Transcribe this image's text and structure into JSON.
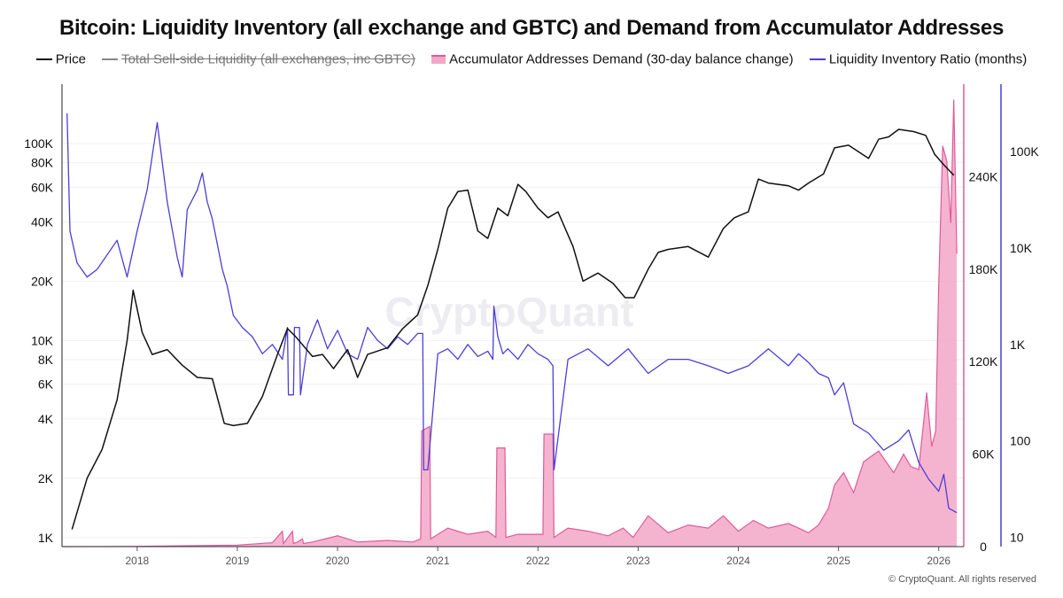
{
  "title": "Bitcoin: Liquidity Inventory (all exchange and GBTC) and Demand from Accumulator Addresses",
  "watermark": "CryptoQuant",
  "copyright": "© CryptoQuant. All rights reserved",
  "legend": [
    {
      "label": "Price",
      "color": "#111111",
      "kind": "line",
      "disabled": false
    },
    {
      "label": "Total Sell-side Liquidity (all exchanges, inc GBTC)",
      "color": "#888888",
      "kind": "line",
      "disabled": true
    },
    {
      "label": "Accumulator Addresses Demand (30-day balance change)",
      "color": "#e879a8",
      "kind": "box",
      "disabled": false
    },
    {
      "label": "Liquidity Inventory Ratio (months)",
      "color": "#4b3fd6",
      "kind": "line",
      "disabled": false
    }
  ],
  "chart_data": {
    "type": "line",
    "x_axis": {
      "type": "time",
      "range": [
        2017.25,
        2026.25
      ],
      "ticks": [
        "2018",
        "2019",
        "2020",
        "2021",
        "2022",
        "2023",
        "2024",
        "2025",
        "2026"
      ],
      "tick_values": [
        2018,
        2019,
        2020,
        2021,
        2022,
        2023,
        2024,
        2025,
        2026
      ]
    },
    "y_left": {
      "label": "Price",
      "scale": "log",
      "range": [
        900,
        200000
      ],
      "ticks": [
        "1K",
        "2K",
        "4K",
        "6K",
        "8K",
        "10K",
        "20K",
        "40K",
        "60K",
        "80K",
        "100K"
      ],
      "tick_values": [
        1000,
        2000,
        4000,
        6000,
        8000,
        10000,
        20000,
        40000,
        60000,
        80000,
        100000
      ]
    },
    "y_right_inner": {
      "label": "Accumulator Addresses Demand",
      "scale": "linear",
      "range": [
        0,
        300000
      ],
      "ticks": [
        "0",
        "60K",
        "120K",
        "180K",
        "240K"
      ],
      "tick_values": [
        0,
        60000,
        120000,
        180000,
        240000
      ]
    },
    "y_right_outer": {
      "label": "Liquidity Inventory Ratio (months)",
      "scale": "log",
      "range": [
        8,
        500000
      ],
      "ticks": [
        "10",
        "100",
        "1K",
        "10K",
        "100K"
      ],
      "tick_values": [
        10,
        100,
        1000,
        10000,
        100000
      ]
    },
    "series": [
      {
        "name": "Price",
        "color": "#111111",
        "axis": "y_left",
        "x": [
          2017.35,
          2017.5,
          2017.65,
          2017.8,
          2017.9,
          2017.96,
          2018.05,
          2018.15,
          2018.3,
          2018.45,
          2018.6,
          2018.75,
          2018.87,
          2018.96,
          2019.1,
          2019.25,
          2019.4,
          2019.5,
          2019.58,
          2019.75,
          2019.85,
          2019.96,
          2020.1,
          2020.2,
          2020.3,
          2020.5,
          2020.65,
          2020.8,
          2020.9,
          2021.0,
          2021.1,
          2021.2,
          2021.3,
          2021.4,
          2021.5,
          2021.6,
          2021.7,
          2021.8,
          2021.88,
          2022.0,
          2022.1,
          2022.2,
          2022.35,
          2022.45,
          2022.6,
          2022.75,
          2022.87,
          2022.96,
          2023.1,
          2023.2,
          2023.3,
          2023.5,
          2023.7,
          2023.85,
          2023.96,
          2024.1,
          2024.2,
          2024.3,
          2024.5,
          2024.6,
          2024.7,
          2024.85,
          2024.96,
          2025.1,
          2025.3,
          2025.4,
          2025.5,
          2025.6,
          2025.75,
          2025.87,
          2025.96,
          2026.05,
          2026.15
        ],
        "values": [
          1100,
          2000,
          2800,
          5000,
          10000,
          18000,
          11000,
          8500,
          9000,
          7500,
          6500,
          6400,
          3800,
          3700,
          3800,
          5200,
          8500,
          11500,
          10500,
          8300,
          8500,
          7200,
          9000,
          6500,
          8500,
          9200,
          11500,
          13500,
          19000,
          29000,
          47000,
          57000,
          58000,
          36000,
          33000,
          47000,
          43000,
          62000,
          57000,
          47000,
          42000,
          45000,
          30000,
          20000,
          22000,
          19500,
          16500,
          16500,
          23000,
          28000,
          29000,
          30000,
          26500,
          37000,
          42000,
          45000,
          66000,
          63000,
          61000,
          58000,
          63000,
          70000,
          95000,
          98000,
          84000,
          105000,
          108000,
          118000,
          115000,
          110000,
          88000,
          78000,
          69000
        ]
      },
      {
        "name": "Accumulator Addresses Demand (30-day balance change)",
        "color": "#e879a8",
        "axis": "y_right_inner",
        "x": [
          2017.25,
          2018.0,
          2019.0,
          2019.35,
          2019.45,
          2019.46,
          2019.55,
          2019.56,
          2019.6,
          2019.65,
          2019.66,
          2019.75,
          2020.0,
          2020.2,
          2020.5,
          2020.75,
          2020.83,
          2020.84,
          2020.92,
          2020.93,
          2021.1,
          2021.3,
          2021.5,
          2021.58,
          2021.59,
          2021.67,
          2021.68,
          2021.8,
          2022.05,
          2022.06,
          2022.15,
          2022.16,
          2022.3,
          2022.5,
          2022.7,
          2022.85,
          2022.95,
          2023.1,
          2023.3,
          2023.5,
          2023.7,
          2023.85,
          2024.0,
          2024.15,
          2024.3,
          2024.5,
          2024.7,
          2024.8,
          2024.9,
          2024.96,
          2025.05,
          2025.15,
          2025.25,
          2025.4,
          2025.55,
          2025.65,
          2025.72,
          2025.8,
          2025.88,
          2025.93,
          2025.97,
          2026.0,
          2026.04,
          2026.08,
          2026.12,
          2026.15,
          2026.18
        ],
        "values": [
          0,
          200,
          1000,
          2500,
          10000,
          2000,
          10000,
          2000,
          3000,
          5000,
          2000,
          3000,
          7000,
          3000,
          4000,
          3000,
          5000,
          75000,
          78000,
          5000,
          12000,
          8000,
          10000,
          6000,
          64000,
          64000,
          6000,
          8000,
          8000,
          73000,
          73000,
          6000,
          12000,
          10000,
          7000,
          12000,
          6000,
          20000,
          9000,
          14000,
          12000,
          20000,
          10000,
          17000,
          12000,
          15000,
          9000,
          14000,
          25000,
          40000,
          48000,
          35000,
          55000,
          62000,
          48000,
          60000,
          52000,
          50000,
          100000,
          65000,
          75000,
          170000,
          260000,
          250000,
          210000,
          290000,
          190000
        ]
      },
      {
        "name": "Liquidity Inventory Ratio (months)",
        "color": "#4b3fd6",
        "axis": "y_right_outer",
        "x": [
          2017.3,
          2017.33,
          2017.4,
          2017.5,
          2017.6,
          2017.8,
          2017.9,
          2018.0,
          2018.1,
          2018.2,
          2018.3,
          2018.4,
          2018.45,
          2018.5,
          2018.6,
          2018.65,
          2018.7,
          2018.75,
          2018.85,
          2018.9,
          2018.96,
          2019.05,
          2019.15,
          2019.25,
          2019.35,
          2019.45,
          2019.5,
          2019.51,
          2019.56,
          2019.57,
          2019.62,
          2019.63,
          2019.7,
          2019.8,
          2019.9,
          2020.0,
          2020.1,
          2020.2,
          2020.3,
          2020.4,
          2020.5,
          2020.6,
          2020.7,
          2020.8,
          2020.85,
          2020.86,
          2020.9,
          2021.0,
          2021.1,
          2021.2,
          2021.3,
          2021.4,
          2021.5,
          2021.55,
          2021.56,
          2021.6,
          2021.65,
          2021.7,
          2021.8,
          2021.9,
          2022.0,
          2022.1,
          2022.15,
          2022.16,
          2022.3,
          2022.5,
          2022.7,
          2022.9,
          2023.1,
          2023.3,
          2023.5,
          2023.7,
          2023.9,
          2024.1,
          2024.3,
          2024.5,
          2024.6,
          2024.7,
          2024.8,
          2024.9,
          2024.96,
          2025.05,
          2025.15,
          2025.3,
          2025.45,
          2025.6,
          2025.7,
          2025.8,
          2025.9,
          2026.0,
          2026.05,
          2026.1,
          2026.18
        ],
        "values": [
          250000,
          15000,
          7000,
          5000,
          6000,
          12000,
          5000,
          15000,
          40000,
          200000,
          30000,
          8000,
          5000,
          25000,
          40000,
          60000,
          30000,
          20000,
          6000,
          4000,
          2000,
          1500,
          1200,
          800,
          1000,
          700,
          1500,
          300,
          300,
          1500,
          1500,
          300,
          1000,
          1800,
          900,
          1400,
          800,
          700,
          1500,
          1100,
          900,
          1200,
          1000,
          1300,
          1300,
          50,
          50,
          800,
          900,
          700,
          1000,
          750,
          850,
          700,
          2500,
          1200,
          800,
          900,
          700,
          1000,
          800,
          700,
          600,
          50,
          700,
          900,
          600,
          900,
          500,
          700,
          700,
          600,
          500,
          600,
          900,
          600,
          800,
          650,
          500,
          450,
          300,
          400,
          150,
          120,
          80,
          100,
          130,
          60,
          40,
          30,
          45,
          20,
          18
        ]
      }
    ]
  }
}
